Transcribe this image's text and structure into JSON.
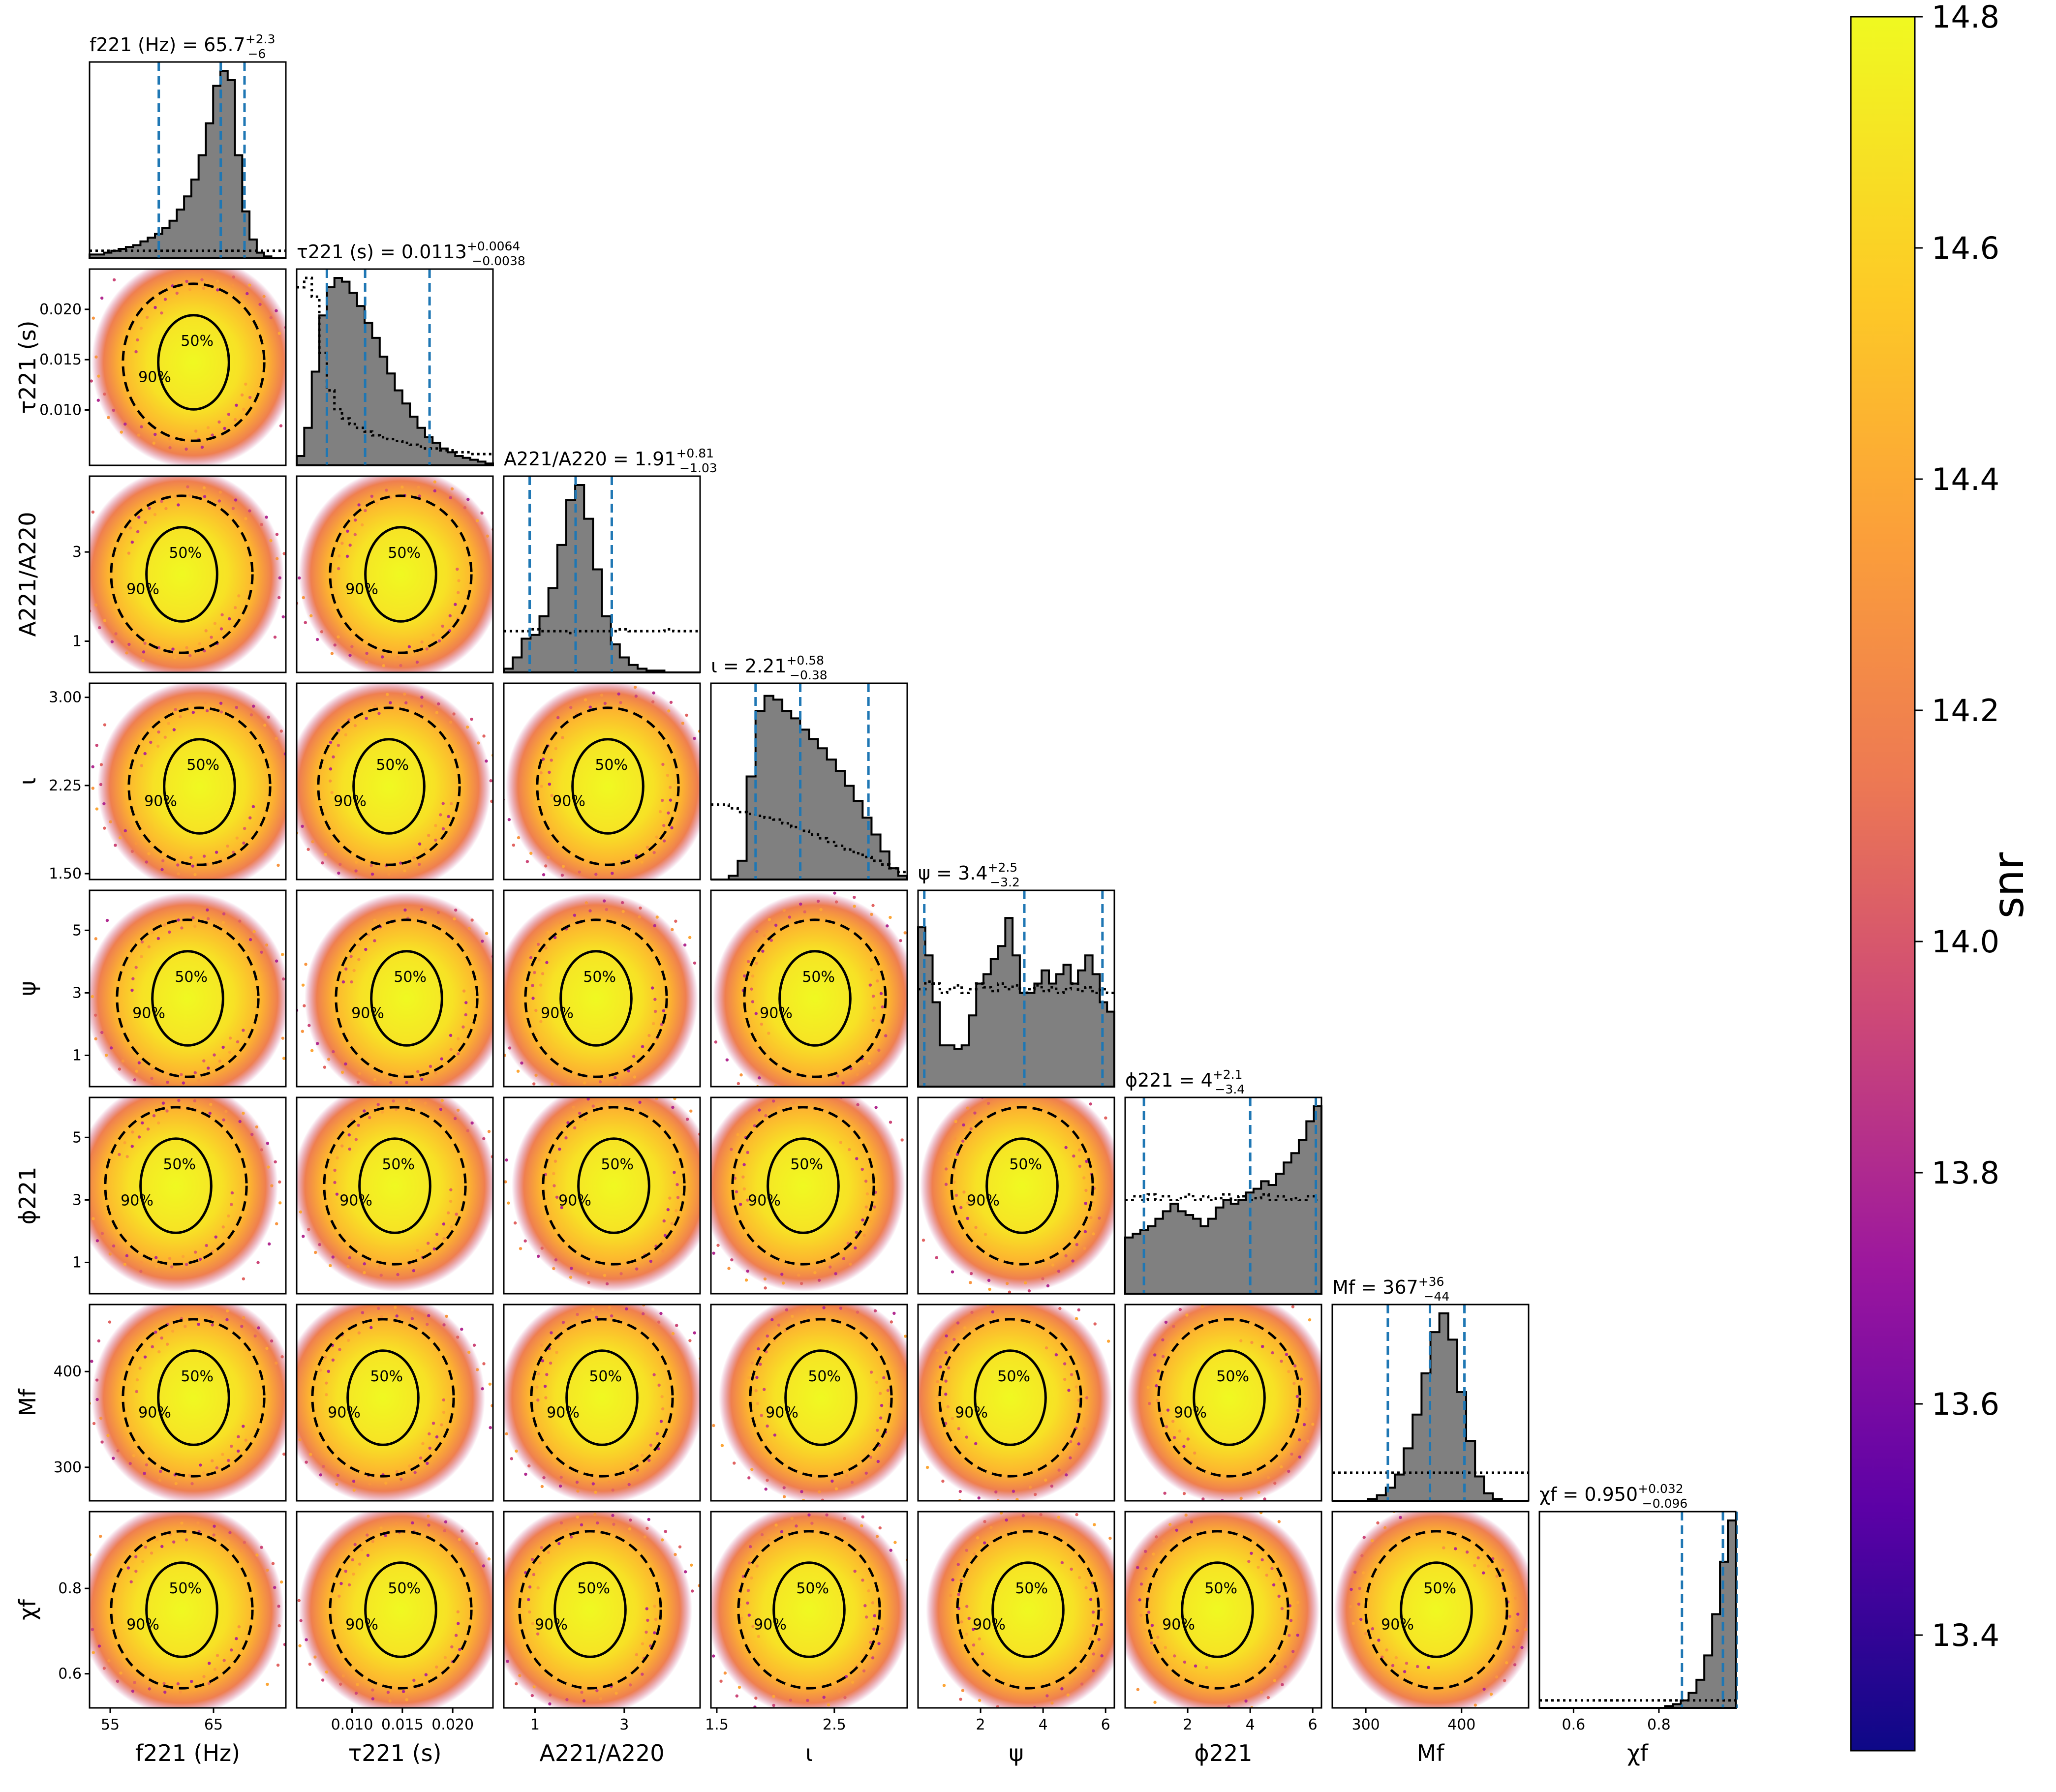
{
  "chart_data": {
    "type": "scatter",
    "subtype": "corner-plot",
    "colorbar": {
      "label": "snr",
      "range": [
        13.3,
        14.8
      ],
      "ticks": [
        "13.4",
        "13.6",
        "13.8",
        "14.0",
        "14.2",
        "14.4",
        "14.6",
        "14.8"
      ],
      "colormap": "plasma"
    },
    "contour_levels": [
      "50%",
      "90%"
    ],
    "parameters": [
      {
        "id": "f221",
        "xlabel": "f221 (Hz)",
        "title_main": "f221 (Hz) = 65.7",
        "title_sup": "+2.3",
        "title_sub": "−6",
        "range": [
          53,
          72
        ],
        "ticks": [
          "55",
          "65"
        ],
        "ylabel": "",
        "median": 65.7,
        "lo": 59.7,
        "hi": 68.0,
        "hist": [
          0.02,
          0.02,
          0.03,
          0.04,
          0.05,
          0.06,
          0.07,
          0.09,
          0.11,
          0.13,
          0.16,
          0.2,
          0.26,
          0.33,
          0.42,
          0.55,
          0.72,
          0.92,
          1.0,
          0.95,
          0.55,
          0.25,
          0.1,
          0.03,
          0.01,
          0,
          0
        ],
        "prior": [
          0.04,
          0.04,
          0.04,
          0.04,
          0.04,
          0.04,
          0.04,
          0.04,
          0.04,
          0.04,
          0.04,
          0.04,
          0.04,
          0.04,
          0.04,
          0.04,
          0.04,
          0.04,
          0.04,
          0.04,
          0.04,
          0.04,
          0.04,
          0.04,
          0.04,
          0.04,
          0.04
        ]
      },
      {
        "id": "tau221",
        "xlabel": "τ221 (s)",
        "ylabel": "τ221 (s)",
        "title_main": "τ221 (s) = 0.0113",
        "title_sup": "+0.0064",
        "title_sub": "−0.0038",
        "range": [
          0.0045,
          0.024
        ],
        "ticks": [
          "0.010",
          "0.015",
          "0.020"
        ],
        "yticks": [
          "0.010",
          "0.015",
          "0.020"
        ],
        "median": 0.0113,
        "lo": 0.0075,
        "hi": 0.0177,
        "hist": [
          0.05,
          0.2,
          0.5,
          0.8,
          0.95,
          1.0,
          0.98,
          0.92,
          0.85,
          0.76,
          0.68,
          0.58,
          0.49,
          0.4,
          0.33,
          0.26,
          0.2,
          0.15,
          0.12,
          0.09,
          0.07,
          0.05,
          0.04,
          0.03,
          0.02,
          0.01
        ],
        "prior": [
          0.95,
          1.0,
          0.9,
          0.6,
          0.4,
          0.3,
          0.25,
          0.22,
          0.2,
          0.18,
          0.16,
          0.15,
          0.14,
          0.13,
          0.12,
          0.11,
          0.1,
          0.09,
          0.09,
          0.08,
          0.08,
          0.07,
          0.07,
          0.06,
          0.06,
          0.06
        ]
      },
      {
        "id": "A221",
        "xlabel": "A221/A220",
        "ylabel": "A221/A220",
        "title_main": "A221/A220 = 1.91",
        "title_sup": "+0.81",
        "title_sub": "−1.03",
        "range": [
          0.3,
          4.7
        ],
        "ticks": [
          "1",
          "3"
        ],
        "yticks": [
          "1",
          "3"
        ],
        "median": 1.91,
        "lo": 0.88,
        "hi": 2.72,
        "hist": [
          0.02,
          0.08,
          0.18,
          0.2,
          0.3,
          0.45,
          0.68,
          0.92,
          1.0,
          0.82,
          0.55,
          0.3,
          0.15,
          0.08,
          0.04,
          0.02,
          0.01,
          0.01,
          0,
          0,
          0,
          0
        ],
        "prior": [
          0.22,
          0.22,
          0.22,
          0.23,
          0.22,
          0.22,
          0.22,
          0.21,
          0.22,
          0.22,
          0.22,
          0.22,
          0.22,
          0.23,
          0.22,
          0.22,
          0.22,
          0.22,
          0.23,
          0.22,
          0.22,
          0.22
        ]
      },
      {
        "id": "iota",
        "xlabel": "ι",
        "ylabel": "ι",
        "title_main": "ι = 2.21",
        "title_sup": "+0.58",
        "title_sub": "−0.38",
        "range": [
          1.45,
          3.12
        ],
        "ticks": [
          "1.5",
          "2.5"
        ],
        "yticks": [
          "1.50",
          "2.25",
          "3.00"
        ],
        "median": 2.21,
        "lo": 1.83,
        "hi": 2.79,
        "hist": [
          0,
          0,
          0.02,
          0.1,
          0.55,
          0.9,
          0.98,
          0.96,
          0.9,
          0.86,
          0.8,
          0.75,
          0.7,
          0.64,
          0.58,
          0.5,
          0.42,
          0.33,
          0.24,
          0.15,
          0.06,
          0.02
        ],
        "prior": [
          0.4,
          0.4,
          0.38,
          0.36,
          0.35,
          0.34,
          0.33,
          0.32,
          0.3,
          0.28,
          0.26,
          0.24,
          0.22,
          0.2,
          0.18,
          0.16,
          0.14,
          0.12,
          0.1,
          0.08,
          0.06,
          0.04
        ]
      },
      {
        "id": "psi",
        "xlabel": "ψ",
        "ylabel": "ψ",
        "title_main": "ψ = 3.4",
        "title_sup": "+2.5",
        "title_sub": "−3.2",
        "range": [
          0,
          6.28
        ],
        "ticks": [
          "2",
          "4",
          "6"
        ],
        "yticks": [
          "1",
          "3",
          "5"
        ],
        "median": 3.4,
        "lo": 0.2,
        "hi": 5.9,
        "hist": [
          0.85,
          0.7,
          0.45,
          0.22,
          0.22,
          0.2,
          0.22,
          0.38,
          0.55,
          0.6,
          0.68,
          0.75,
          0.9,
          0.7,
          0.5,
          0.5,
          0.55,
          0.62,
          0.55,
          0.6,
          0.65,
          0.55,
          0.62,
          0.7,
          0.6,
          0.45,
          0.4
        ],
        "prior": [
          0.52,
          0.56,
          0.55,
          0.5,
          0.52,
          0.54,
          0.5,
          0.52,
          0.55,
          0.53,
          0.51,
          0.55,
          0.52,
          0.54,
          0.5,
          0.52,
          0.54,
          0.51,
          0.53,
          0.5,
          0.52,
          0.55,
          0.51,
          0.53,
          0.5,
          0.52,
          0.5
        ]
      },
      {
        "id": "phi221",
        "xlabel": "ϕ221",
        "ylabel": "ϕ221",
        "title_main": "ϕ221 = 4",
        "title_sup": "+2.1",
        "title_sub": "−3.4",
        "range": [
          0,
          6.28
        ],
        "ticks": [
          "2",
          "4",
          "6"
        ],
        "yticks": [
          "1",
          "3",
          "5"
        ],
        "median": 4.0,
        "lo": 0.6,
        "hi": 6.1,
        "hist": [
          0.3,
          0.32,
          0.34,
          0.36,
          0.4,
          0.44,
          0.48,
          0.44,
          0.42,
          0.4,
          0.36,
          0.4,
          0.46,
          0.5,
          0.48,
          0.5,
          0.54,
          0.56,
          0.6,
          0.58,
          0.64,
          0.7,
          0.75,
          0.82,
          0.92,
          1.0
        ],
        "prior": [
          0.5,
          0.52,
          0.5,
          0.53,
          0.5,
          0.52,
          0.5,
          0.51,
          0.53,
          0.5,
          0.52,
          0.5,
          0.51,
          0.53,
          0.5,
          0.52,
          0.5,
          0.51,
          0.53,
          0.5,
          0.52,
          0.5,
          0.51,
          0.5,
          0.52,
          0.5
        ]
      },
      {
        "id": "Mf",
        "xlabel": "Mf",
        "ylabel": "Mf",
        "title_main": "Mf = 367",
        "title_sup": "+36",
        "title_sub": "−44",
        "range": [
          265,
          470
        ],
        "ticks": [
          "300",
          "400"
        ],
        "yticks": [
          "300",
          "400"
        ],
        "median": 367,
        "lo": 323,
        "hi": 403,
        "hist": [
          0,
          0,
          0,
          0,
          0.01,
          0.03,
          0.07,
          0.14,
          0.28,
          0.46,
          0.68,
          0.9,
          1.0,
          0.86,
          0.58,
          0.32,
          0.13,
          0.04,
          0.01,
          0,
          0,
          0
        ],
        "prior": [
          0.15,
          0.15,
          0.15,
          0.15,
          0.15,
          0.15,
          0.15,
          0.15,
          0.15,
          0.15,
          0.15,
          0.15,
          0.15,
          0.15,
          0.15,
          0.15,
          0.15,
          0.15,
          0.15,
          0.15,
          0.15,
          0.15
        ]
      },
      {
        "id": "chif",
        "xlabel": "χf",
        "ylabel": "χf",
        "title_main": "χf = 0.950",
        "title_sup": "+0.032",
        "title_sub": "−0.096",
        "range": [
          0.52,
          0.98
        ],
        "ticks": [
          "0.6",
          "0.8"
        ],
        "yticks": [
          "0.6",
          "0.8"
        ],
        "median": 0.95,
        "lo": 0.854,
        "hi": 0.982,
        "hist": [
          0,
          0,
          0,
          0,
          0,
          0,
          0,
          0,
          0,
          0,
          0,
          0,
          0,
          0,
          0,
          0,
          0.01,
          0.02,
          0.04,
          0.08,
          0.15,
          0.28,
          0.5,
          0.78,
          1.0
        ],
        "prior": [
          0.04,
          0.04,
          0.04,
          0.04,
          0.04,
          0.04,
          0.04,
          0.04,
          0.04,
          0.04,
          0.04,
          0.04,
          0.04,
          0.04,
          0.04,
          0.04,
          0.04,
          0.04,
          0.04,
          0.04,
          0.04,
          0.04,
          0.04,
          0.04,
          0.04
        ]
      }
    ]
  }
}
